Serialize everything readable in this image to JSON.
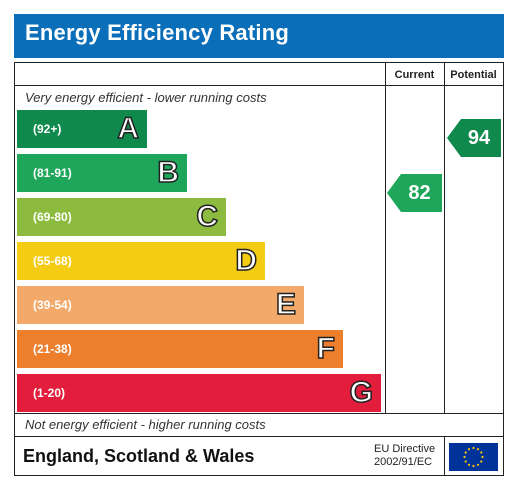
{
  "title": "Energy Efficiency Rating",
  "columns": {
    "current": "Current",
    "potential": "Potential"
  },
  "top_caption": "Very energy efficient - lower running costs",
  "bottom_caption": "Not energy efficient - higher running costs",
  "bands": [
    {
      "range": "(92+)",
      "letter": "A",
      "color": "#108a4c"
    },
    {
      "range": "(81-91)",
      "letter": "B",
      "color": "#1ea65a"
    },
    {
      "range": "(69-80)",
      "letter": "C",
      "color": "#8dbb3f"
    },
    {
      "range": "(55-68)",
      "letter": "D",
      "color": "#f4cc14"
    },
    {
      "range": "(39-54)",
      "letter": "E",
      "color": "#f2a96a"
    },
    {
      "range": "(21-38)",
      "letter": "F",
      "color": "#ec7e2c"
    },
    {
      "range": "(1-20)",
      "letter": "G",
      "color": "#e21e3c"
    }
  ],
  "current": {
    "value": "82",
    "color": "#1ea65a"
  },
  "potential": {
    "value": "94",
    "color": "#108a4c"
  },
  "footer": {
    "region": "England, Scotland & Wales",
    "directive_line1": "EU Directive",
    "directive_line2": "2002/91/EC",
    "flag_icon": "eu-flag-icon"
  }
}
